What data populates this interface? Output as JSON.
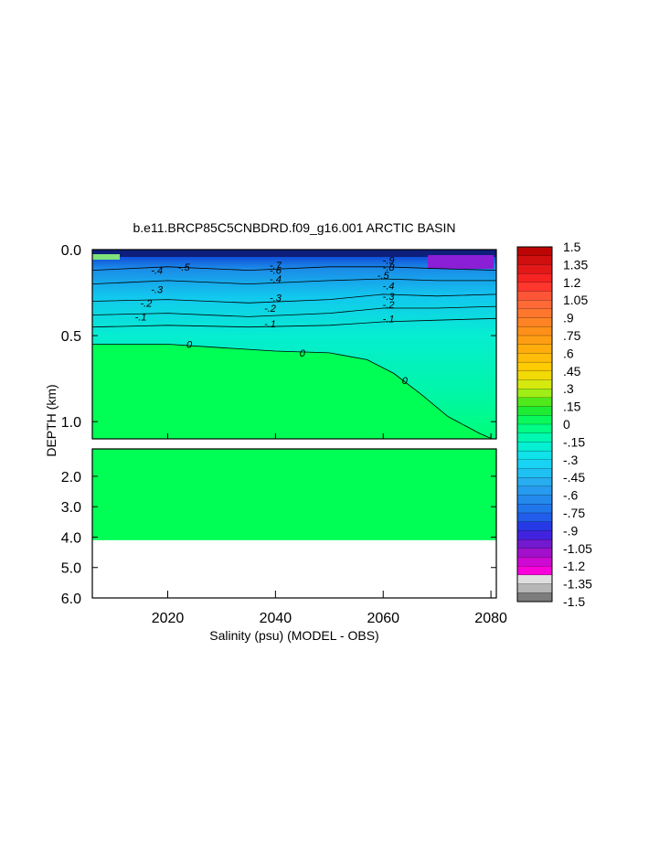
{
  "chart_data": {
    "type": "heatmap",
    "title": "b.e11.BRCP85C5CNBDRD.f09_g16.001 ARCTIC BASIN",
    "xlabel": "Salinity (psu) (MODEL - OBS)",
    "ylabel": "DEPTH (km)",
    "xlim": [
      2006,
      2081
    ],
    "x_ticks": [
      2020,
      2040,
      2060,
      2080
    ],
    "x_tick_labels": [
      "2020",
      "2040",
      "2060",
      "2080"
    ],
    "upper_panel": {
      "ylim": [
        0.0,
        1.1
      ],
      "y_ticks": [
        0.0,
        0.5,
        1.0
      ],
      "y_tick_labels": [
        "0.0",
        "0.5",
        "1.0"
      ]
    },
    "lower_panel": {
      "ylim": [
        1.1,
        6.0
      ],
      "y_ticks": [
        2.0,
        3.0,
        4.0,
        5.0,
        6.0
      ],
      "y_tick_labels": [
        "2.0",
        "3.0",
        "4.0",
        "5.0",
        "6.0"
      ],
      "data_bottom_depth": 4.1
    },
    "zero_contour": [
      [
        2006,
        0.55
      ],
      [
        2020,
        0.55
      ],
      [
        2030,
        0.57
      ],
      [
        2040,
        0.59
      ],
      [
        2050,
        0.6
      ],
      [
        2057,
        0.64
      ],
      [
        2062,
        0.72
      ],
      [
        2067,
        0.84
      ],
      [
        2072,
        0.97
      ],
      [
        2078,
        1.07
      ],
      [
        2081,
        1.11
      ]
    ],
    "contours": [
      {
        "level": -0.1,
        "points": [
          [
            2006,
            0.45
          ],
          [
            2020,
            0.44
          ],
          [
            2035,
            0.45
          ],
          [
            2050,
            0.44
          ],
          [
            2060,
            0.42
          ],
          [
            2070,
            0.41
          ],
          [
            2081,
            0.4
          ]
        ]
      },
      {
        "level": -0.2,
        "points": [
          [
            2006,
            0.38
          ],
          [
            2020,
            0.37
          ],
          [
            2035,
            0.39
          ],
          [
            2050,
            0.37
          ],
          [
            2060,
            0.34
          ],
          [
            2070,
            0.34
          ],
          [
            2081,
            0.33
          ]
        ]
      },
      {
        "level": -0.3,
        "points": [
          [
            2006,
            0.3
          ],
          [
            2020,
            0.29
          ],
          [
            2035,
            0.31
          ],
          [
            2050,
            0.29
          ],
          [
            2060,
            0.26
          ],
          [
            2070,
            0.27
          ],
          [
            2081,
            0.26
          ]
        ]
      },
      {
        "level": -0.4,
        "points": [
          [
            2006,
            0.2
          ],
          [
            2020,
            0.18
          ],
          [
            2035,
            0.2
          ],
          [
            2050,
            0.18
          ],
          [
            2060,
            0.17
          ],
          [
            2070,
            0.18
          ],
          [
            2081,
            0.18
          ]
        ]
      },
      {
        "level": -0.5,
        "points": [
          [
            2006,
            0.12
          ],
          [
            2020,
            0.1
          ],
          [
            2035,
            0.12
          ],
          [
            2050,
            0.1
          ],
          [
            2060,
            0.1
          ],
          [
            2070,
            0.11
          ],
          [
            2081,
            0.12
          ]
        ]
      }
    ],
    "contour_labels": [
      {
        "text": "0",
        "x": 2024,
        "y": 0.55
      },
      {
        "text": "0",
        "x": 2045,
        "y": 0.6
      },
      {
        "text": "0",
        "x": 2064,
        "y": 0.76
      },
      {
        "text": "-.1",
        "x": 2015,
        "y": 0.39
      },
      {
        "text": "-.1",
        "x": 2039,
        "y": 0.43
      },
      {
        "text": "-.1",
        "x": 2061,
        "y": 0.4
      },
      {
        "text": "-.2",
        "x": 2016,
        "y": 0.31
      },
      {
        "text": "-.2",
        "x": 2039,
        "y": 0.34
      },
      {
        "text": "-.2",
        "x": 2061,
        "y": 0.32
      },
      {
        "text": "-.3",
        "x": 2040,
        "y": 0.28
      },
      {
        "text": "-.3",
        "x": 2018,
        "y": 0.23
      },
      {
        "text": "-.3",
        "x": 2061,
        "y": 0.27
      },
      {
        "text": "-.4",
        "x": 2018,
        "y": 0.12
      },
      {
        "text": "-.4",
        "x": 2040,
        "y": 0.17
      },
      {
        "text": "-.4",
        "x": 2061,
        "y": 0.21
      },
      {
        "text": "-.5",
        "x": 2023,
        "y": 0.1
      },
      {
        "text": "-.5",
        "x": 2060,
        "y": 0.15
      },
      {
        "text": "-.6",
        "x": 2040,
        "y": 0.12
      },
      {
        "text": "-.7",
        "x": 2040,
        "y": 0.09
      },
      {
        "text": "-.8",
        "x": 2061,
        "y": 0.1
      },
      {
        "text": "-.9",
        "x": 2061,
        "y": 0.06
      }
    ],
    "colorbar": {
      "min": -1.5,
      "max": 1.5,
      "levels": 40,
      "tick_labels": [
        "1.5",
        "1.35",
        "1.2",
        "1.05",
        ".9",
        ".75",
        ".6",
        ".45",
        ".3",
        ".15",
        "0",
        "-.15",
        "-.3",
        "-.45",
        "-.6",
        "-.75",
        "-.9",
        "-1.05",
        "-1.2",
        "-1.35",
        "-1.5"
      ]
    },
    "grid": false,
    "legend": "right"
  }
}
